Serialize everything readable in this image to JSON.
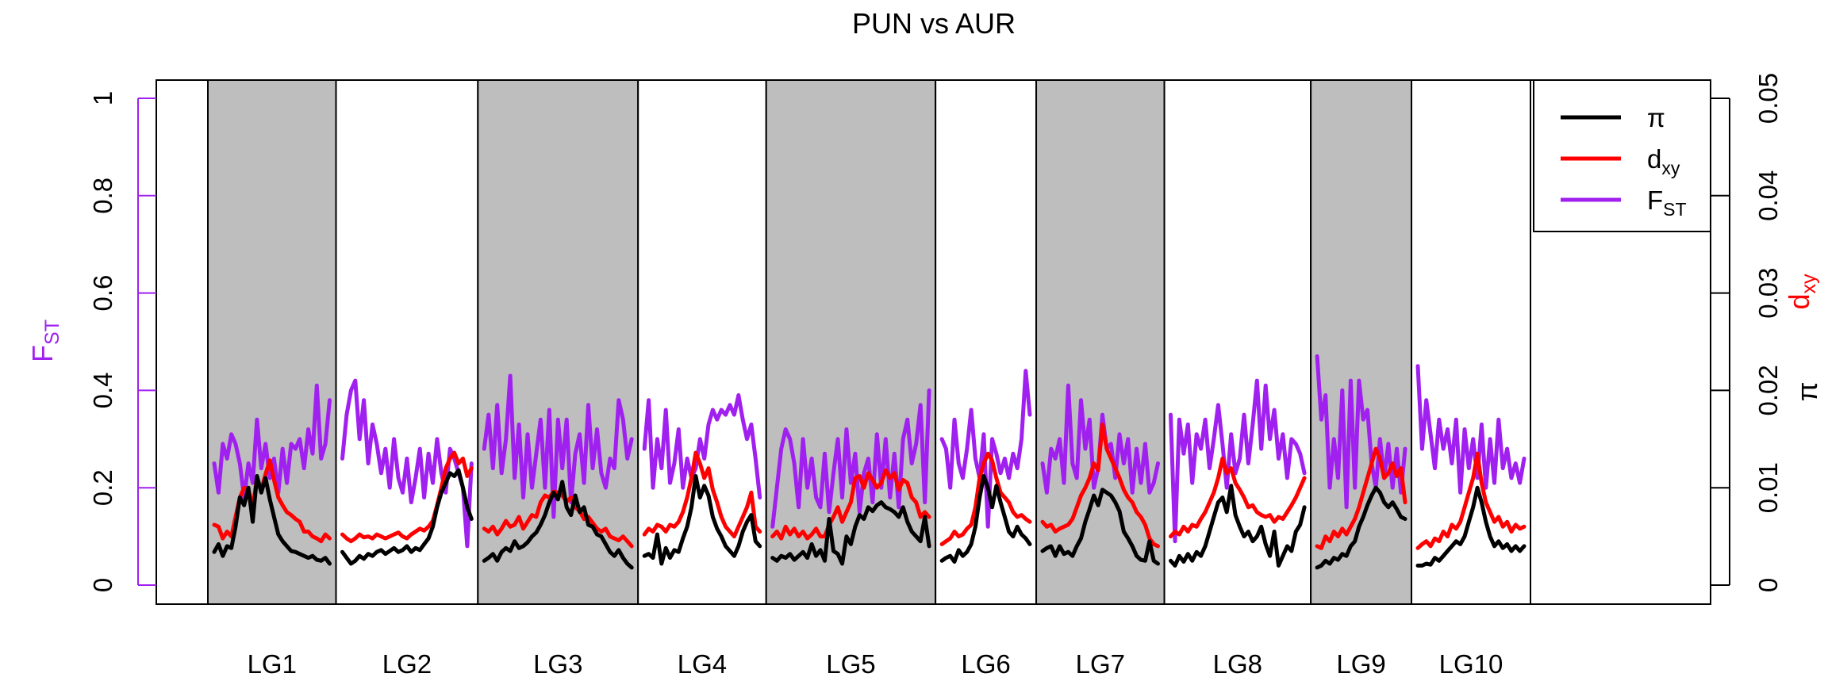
{
  "chart_data": {
    "type": "line",
    "title": "PUN vs AUR",
    "left_axis": {
      "label_main": "F",
      "label_sub": "ST",
      "color": "#A020F0",
      "ylim": [
        0,
        1.08
      ],
      "ticks": [
        0,
        0.2,
        0.4,
        0.6,
        0.8,
        1
      ],
      "tick_labels": [
        "0",
        "0.2",
        "0.4",
        "0.6",
        "0.8",
        "1"
      ]
    },
    "right_axis": {
      "label_dxy_main": "d",
      "label_dxy_sub": "xy",
      "label_dxy_color": "#FF0000",
      "label_pi": "π",
      "label_pi_color": "#000000",
      "ylim": [
        0,
        0.054
      ],
      "ticks": [
        0,
        0.01,
        0.02,
        0.03,
        0.04,
        0.05
      ],
      "tick_labels": [
        "0",
        "0.01",
        "0.02",
        "0.03",
        "0.04",
        "0.05"
      ]
    },
    "shading_colors": [
      "#BEBEBE",
      "#FFFFFF"
    ],
    "legend": {
      "position": "top-right",
      "entries": [
        {
          "main": "π",
          "sub": "",
          "color": "#000000"
        },
        {
          "main": "d",
          "sub": "xy",
          "color": "#FF0000"
        },
        {
          "main": "F",
          "sub": "ST",
          "color": "#A020F0"
        }
      ]
    },
    "groups": [
      {
        "name": "LG1",
        "fst": [
          0.25,
          0.19,
          0.29,
          0.26,
          0.31,
          0.29,
          0.25,
          0.18,
          0.25,
          0.21,
          0.34,
          0.24,
          0.29,
          0.22,
          0.26,
          0.19,
          0.28,
          0.21,
          0.29,
          0.28,
          0.3,
          0.24,
          0.32,
          0.27,
          0.41,
          0.26,
          0.29,
          0.38
        ],
        "dxy": [
          0.0062,
          0.006,
          0.0048,
          0.0055,
          0.005,
          0.007,
          0.009,
          0.01,
          0.0098,
          0.008,
          0.011,
          0.0098,
          0.0114,
          0.0128,
          0.0108,
          0.009,
          0.0082,
          0.0075,
          0.0072,
          0.0068,
          0.0065,
          0.0055,
          0.0055,
          0.005,
          0.0048,
          0.0045,
          0.0052,
          0.0048
        ],
        "pi": [
          0.0034,
          0.0042,
          0.003,
          0.004,
          0.0038,
          0.006,
          0.009,
          0.0082,
          0.01,
          0.0065,
          0.0112,
          0.0095,
          0.011,
          0.0088,
          0.007,
          0.0052,
          0.0045,
          0.004,
          0.0035,
          0.0034,
          0.0032,
          0.003,
          0.0028,
          0.003,
          0.0026,
          0.0025,
          0.0028,
          0.0022
        ]
      },
      {
        "name": "LG2",
        "fst": [
          0.26,
          0.35,
          0.4,
          0.42,
          0.3,
          0.38,
          0.25,
          0.33,
          0.29,
          0.23,
          0.28,
          0.2,
          0.3,
          0.22,
          0.19,
          0.26,
          0.17,
          0.22,
          0.28,
          0.18,
          0.27,
          0.21,
          0.3,
          0.23,
          0.19,
          0.28,
          0.26,
          0.23,
          0.2,
          0.08,
          0.25
        ],
        "dxy": [
          0.0052,
          0.0048,
          0.0045,
          0.0048,
          0.0052,
          0.0049,
          0.005,
          0.0048,
          0.0052,
          0.005,
          0.0048,
          0.005,
          0.0052,
          0.0054,
          0.005,
          0.0048,
          0.0052,
          0.0055,
          0.0058,
          0.0056,
          0.006,
          0.0066,
          0.0082,
          0.01,
          0.012,
          0.013,
          0.0136,
          0.0125,
          0.013,
          0.0112,
          0.012
        ],
        "pi": [
          0.0034,
          0.0028,
          0.0022,
          0.0025,
          0.003,
          0.0027,
          0.0032,
          0.003,
          0.0034,
          0.0036,
          0.0032,
          0.0035,
          0.0038,
          0.0034,
          0.0036,
          0.004,
          0.0034,
          0.0038,
          0.0036,
          0.0042,
          0.0048,
          0.006,
          0.008,
          0.0095,
          0.0105,
          0.0115,
          0.0112,
          0.0118,
          0.01,
          0.008,
          0.0068
        ]
      },
      {
        "name": "LG3",
        "fst": [
          0.28,
          0.35,
          0.24,
          0.37,
          0.23,
          0.3,
          0.43,
          0.22,
          0.33,
          0.18,
          0.31,
          0.2,
          0.27,
          0.34,
          0.2,
          0.36,
          0.14,
          0.34,
          0.24,
          0.34,
          0.17,
          0.27,
          0.31,
          0.21,
          0.37,
          0.24,
          0.32,
          0.23,
          0.2,
          0.26,
          0.24,
          0.38,
          0.34,
          0.26,
          0.3
        ],
        "dxy": [
          0.0058,
          0.0055,
          0.006,
          0.0052,
          0.0058,
          0.0066,
          0.006,
          0.0062,
          0.007,
          0.0058,
          0.0065,
          0.0072,
          0.007,
          0.0085,
          0.0092,
          0.009,
          0.0096,
          0.0095,
          0.0092,
          0.0086,
          0.009,
          0.008,
          0.0076,
          0.0068,
          0.007,
          0.0064,
          0.0058,
          0.0055,
          0.0058,
          0.005,
          0.0048,
          0.0046,
          0.005,
          0.0045,
          0.004
        ],
        "pi": [
          0.0025,
          0.0028,
          0.0032,
          0.0025,
          0.0034,
          0.0038,
          0.0035,
          0.0045,
          0.0038,
          0.004,
          0.0044,
          0.005,
          0.0054,
          0.0062,
          0.0072,
          0.0085,
          0.0095,
          0.0088,
          0.0106,
          0.008,
          0.0072,
          0.0092,
          0.0075,
          0.008,
          0.0062,
          0.006,
          0.0052,
          0.005,
          0.0042,
          0.0034,
          0.003,
          0.0036,
          0.0028,
          0.0022,
          0.0018
        ]
      },
      {
        "name": "LG4",
        "fst": [
          0.28,
          0.38,
          0.2,
          0.3,
          0.24,
          0.36,
          0.21,
          0.25,
          0.32,
          0.2,
          0.26,
          0.22,
          0.24,
          0.3,
          0.26,
          0.33,
          0.36,
          0.34,
          0.36,
          0.35,
          0.37,
          0.35,
          0.39,
          0.34,
          0.3,
          0.33,
          0.26,
          0.18
        ],
        "dxy": [
          0.0052,
          0.0058,
          0.0055,
          0.0062,
          0.006,
          0.0055,
          0.0062,
          0.006,
          0.0065,
          0.0075,
          0.009,
          0.011,
          0.0136,
          0.0125,
          0.011,
          0.012,
          0.0098,
          0.0085,
          0.007,
          0.006,
          0.0055,
          0.005,
          0.006,
          0.007,
          0.008,
          0.0095,
          0.006,
          0.0055
        ],
        "pi": [
          0.003,
          0.0032,
          0.0028,
          0.0052,
          0.0022,
          0.0038,
          0.0028,
          0.0036,
          0.0034,
          0.0048,
          0.006,
          0.008,
          0.0112,
          0.009,
          0.0102,
          0.0092,
          0.007,
          0.0058,
          0.005,
          0.004,
          0.0035,
          0.003,
          0.004,
          0.0055,
          0.0065,
          0.0072,
          0.0045,
          0.004
        ]
      },
      {
        "name": "LG5",
        "fst": [
          0.12,
          0.2,
          0.28,
          0.32,
          0.3,
          0.25,
          0.16,
          0.3,
          0.2,
          0.26,
          0.18,
          0.16,
          0.27,
          0.15,
          0.23,
          0.3,
          0.18,
          0.32,
          0.21,
          0.27,
          0.15,
          0.23,
          0.26,
          0.17,
          0.31,
          0.2,
          0.3,
          0.18,
          0.27,
          0.16,
          0.3,
          0.34,
          0.25,
          0.29,
          0.37,
          0.17,
          0.4
        ],
        "dxy": [
          0.005,
          0.0055,
          0.0048,
          0.006,
          0.0052,
          0.0058,
          0.005,
          0.0055,
          0.0048,
          0.0052,
          0.0058,
          0.005,
          0.005,
          0.0062,
          0.007,
          0.008,
          0.0065,
          0.0075,
          0.0085,
          0.011,
          0.0112,
          0.01,
          0.0115,
          0.0108,
          0.01,
          0.0105,
          0.0118,
          0.011,
          0.0115,
          0.0098,
          0.0108,
          0.0105,
          0.009,
          0.0085,
          0.007,
          0.0075,
          0.007
        ],
        "pi": [
          0.0028,
          0.0025,
          0.003,
          0.0028,
          0.0032,
          0.0026,
          0.003,
          0.0034,
          0.0028,
          0.0042,
          0.003,
          0.0036,
          0.0025,
          0.0068,
          0.0035,
          0.0032,
          0.0022,
          0.005,
          0.0042,
          0.006,
          0.0072,
          0.0068,
          0.008,
          0.0076,
          0.0082,
          0.0085,
          0.008,
          0.0078,
          0.0075,
          0.007,
          0.008,
          0.0065,
          0.0055,
          0.005,
          0.0045,
          0.007,
          0.004
        ]
      },
      {
        "name": "LG6",
        "fst": [
          0.3,
          0.28,
          0.2,
          0.34,
          0.25,
          0.22,
          0.28,
          0.36,
          0.26,
          0.22,
          0.31,
          0.12,
          0.3,
          0.27,
          0.23,
          0.26,
          0.22,
          0.27,
          0.24,
          0.3,
          0.44,
          0.35
        ],
        "dxy": [
          0.0042,
          0.0045,
          0.0048,
          0.0055,
          0.005,
          0.0052,
          0.0058,
          0.0062,
          0.008,
          0.011,
          0.0125,
          0.0135,
          0.0128,
          0.011,
          0.0095,
          0.009,
          0.0085,
          0.0075,
          0.007,
          0.0072,
          0.0068,
          0.0065
        ],
        "pi": [
          0.0025,
          0.0028,
          0.003,
          0.0024,
          0.0036,
          0.003,
          0.0034,
          0.0042,
          0.006,
          0.009,
          0.0112,
          0.01,
          0.008,
          0.0102,
          0.0085,
          0.007,
          0.0055,
          0.005,
          0.006,
          0.0052,
          0.0048,
          0.0042
        ]
      },
      {
        "name": "LG7",
        "fst": [
          0.25,
          0.19,
          0.28,
          0.26,
          0.3,
          0.21,
          0.41,
          0.25,
          0.22,
          0.38,
          0.28,
          0.34,
          0.2,
          0.24,
          0.35,
          0.28,
          0.29,
          0.22,
          0.31,
          0.25,
          0.3,
          0.19,
          0.28,
          0.21,
          0.29,
          0.19,
          0.21,
          0.25
        ],
        "dxy": [
          0.0065,
          0.006,
          0.0062,
          0.0055,
          0.0058,
          0.006,
          0.0062,
          0.0068,
          0.008,
          0.0092,
          0.01,
          0.011,
          0.0125,
          0.0118,
          0.0165,
          0.014,
          0.013,
          0.012,
          0.011,
          0.0098,
          0.009,
          0.0085,
          0.0075,
          0.007,
          0.0062,
          0.0048,
          0.0042,
          0.004
        ],
        "pi": [
          0.0035,
          0.0038,
          0.004,
          0.003,
          0.004,
          0.0032,
          0.0034,
          0.003,
          0.004,
          0.0048,
          0.0065,
          0.0078,
          0.0092,
          0.0082,
          0.0098,
          0.0095,
          0.0092,
          0.0085,
          0.0076,
          0.0055,
          0.0048,
          0.004,
          0.003,
          0.0026,
          0.0025,
          0.0045,
          0.0025,
          0.0022
        ]
      },
      {
        "name": "LG8",
        "fst": [
          0.35,
          0.09,
          0.34,
          0.27,
          0.33,
          0.21,
          0.31,
          0.28,
          0.34,
          0.24,
          0.3,
          0.37,
          0.29,
          0.2,
          0.31,
          0.23,
          0.26,
          0.35,
          0.25,
          0.33,
          0.42,
          0.28,
          0.41,
          0.3,
          0.36,
          0.26,
          0.31,
          0.22,
          0.3,
          0.29,
          0.27,
          0.23
        ],
        "dxy": [
          0.005,
          0.0055,
          0.0052,
          0.006,
          0.0055,
          0.0062,
          0.006,
          0.0068,
          0.0075,
          0.0085,
          0.0095,
          0.011,
          0.013,
          0.0115,
          0.012,
          0.0105,
          0.0098,
          0.009,
          0.008,
          0.0082,
          0.0075,
          0.0072,
          0.007,
          0.0072,
          0.0065,
          0.007,
          0.0068,
          0.0075,
          0.0082,
          0.009,
          0.01,
          0.011
        ],
        "pi": [
          0.0025,
          0.002,
          0.003,
          0.0024,
          0.0032,
          0.0025,
          0.0034,
          0.003,
          0.004,
          0.0055,
          0.007,
          0.0085,
          0.009,
          0.0075,
          0.0102,
          0.0072,
          0.006,
          0.005,
          0.0055,
          0.0045,
          0.005,
          0.006,
          0.0042,
          0.003,
          0.0055,
          0.002,
          0.003,
          0.004,
          0.0035,
          0.0055,
          0.0062,
          0.008
        ]
      },
      {
        "name": "LG9",
        "fst": [
          0.47,
          0.34,
          0.39,
          0.2,
          0.3,
          0.22,
          0.4,
          0.16,
          0.42,
          0.2,
          0.42,
          0.34,
          0.36,
          0.25,
          0.2,
          0.3,
          0.22,
          0.29,
          0.2,
          0.28,
          0.19,
          0.28
        ],
        "dxy": [
          0.004,
          0.0038,
          0.005,
          0.0045,
          0.0055,
          0.005,
          0.0058,
          0.0052,
          0.006,
          0.0068,
          0.008,
          0.0095,
          0.011,
          0.0125,
          0.014,
          0.013,
          0.011,
          0.0115,
          0.0125,
          0.0112,
          0.012,
          0.0085
        ],
        "pi": [
          0.0018,
          0.002,
          0.0025,
          0.0022,
          0.0028,
          0.0026,
          0.0032,
          0.003,
          0.004,
          0.0045,
          0.006,
          0.007,
          0.0082,
          0.0092,
          0.01,
          0.0095,
          0.0085,
          0.008,
          0.0085,
          0.0078,
          0.007,
          0.0068
        ]
      },
      {
        "name": "LG10",
        "fst": [
          0.45,
          0.28,
          0.38,
          0.31,
          0.24,
          0.34,
          0.28,
          0.32,
          0.25,
          0.34,
          0.19,
          0.32,
          0.24,
          0.3,
          0.22,
          0.33,
          0.2,
          0.3,
          0.21,
          0.34,
          0.24,
          0.28,
          0.22,
          0.25,
          0.21,
          0.26
        ],
        "dxy": [
          0.0038,
          0.0042,
          0.0045,
          0.004,
          0.0048,
          0.0045,
          0.0055,
          0.005,
          0.0062,
          0.0058,
          0.0065,
          0.008,
          0.0095,
          0.011,
          0.0135,
          0.0105,
          0.0085,
          0.0075,
          0.0065,
          0.007,
          0.006,
          0.0065,
          0.0055,
          0.0062,
          0.0058,
          0.006
        ],
        "pi": [
          0.002,
          0.002,
          0.0022,
          0.0021,
          0.0028,
          0.0025,
          0.003,
          0.0035,
          0.004,
          0.0045,
          0.0042,
          0.005,
          0.0065,
          0.008,
          0.01,
          0.0085,
          0.0065,
          0.005,
          0.004,
          0.0045,
          0.0038,
          0.0042,
          0.0035,
          0.004,
          0.0035,
          0.004
        ]
      }
    ]
  }
}
